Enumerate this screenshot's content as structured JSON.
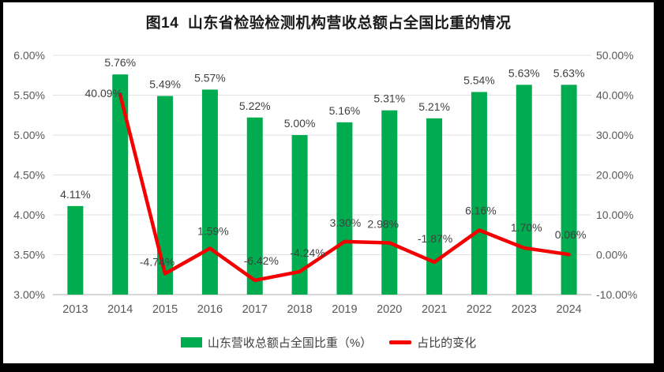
{
  "window": {
    "frame_color": "#000000",
    "background": "#ffffff"
  },
  "chart_data": {
    "type": "bar",
    "subtype": "combo: bars (left axis) + line (right axis)",
    "title": "图14  山东省检验检测机构营收总额占全国比重的情况",
    "categories": [
      "2013",
      "2014",
      "2015",
      "2016",
      "2017",
      "2018",
      "2019",
      "2020",
      "2021",
      "2022",
      "2023",
      "2024"
    ],
    "series": [
      {
        "name": "山东营收总额占全国比重（%）",
        "kind": "bar",
        "axis": "left",
        "color": "#00AC4F",
        "values": [
          4.11,
          5.76,
          5.49,
          5.57,
          5.22,
          5.0,
          5.16,
          5.31,
          5.21,
          5.54,
          5.63,
          5.63
        ],
        "labels": [
          "4.11%",
          "5.76%",
          "5.49%",
          "5.57%",
          "5.22%",
          "5.00%",
          "5.16%",
          "5.31%",
          "5.21%",
          "5.54%",
          "5.63%",
          "5.63%"
        ]
      },
      {
        "name": "占比的变化",
        "kind": "line",
        "axis": "right",
        "color": "#F40000",
        "values": [
          null,
          40.09,
          -4.74,
          1.59,
          -6.42,
          -4.24,
          3.3,
          2.98,
          -1.87,
          6.16,
          1.7,
          0.06
        ],
        "labels": [
          "",
          "40.09%",
          "-4.74%",
          "1.59%",
          "-6.42%",
          "-4.24%",
          "3.30%",
          "2.98%",
          "-1.87%",
          "6.16%",
          "1.70%",
          "0.06%"
        ]
      }
    ],
    "left_axis": {
      "min": 3,
      "max": 6,
      "ticks": [
        "6.00%",
        "5.50%",
        "5.00%",
        "4.50%",
        "4.00%",
        "3.50%",
        "3.00%"
      ]
    },
    "right_axis": {
      "min": -10,
      "max": 50,
      "ticks": [
        "50.00%",
        "40.00%",
        "30.00%",
        "20.00%",
        "10.00%",
        "0.00%",
        "-10.00%"
      ]
    },
    "grid": true,
    "legend_position": "bottom",
    "style": {
      "gridline_color": "#E2E2E2",
      "axis_line_color": "#BFBFBF",
      "tick_label_color": "#595959",
      "data_label_color": "#404040",
      "title_color": "#1a1a1a"
    }
  }
}
